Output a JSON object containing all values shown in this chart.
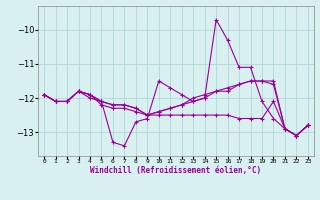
{
  "xlabel": "Windchill (Refroidissement éolien,°C)",
  "x_hours": [
    0,
    1,
    2,
    3,
    4,
    5,
    6,
    7,
    8,
    9,
    10,
    11,
    12,
    13,
    14,
    15,
    16,
    17,
    18,
    19,
    20,
    21,
    22,
    23
  ],
  "line1": [
    -11.9,
    -12.1,
    -12.1,
    -11.8,
    -12.0,
    -12.1,
    -13.3,
    -13.4,
    -12.7,
    -12.6,
    -11.5,
    -11.7,
    -11.9,
    -12.1,
    -12.0,
    -9.7,
    -10.3,
    -11.1,
    -11.1,
    -12.1,
    -12.6,
    -12.9,
    -13.1,
    -12.8
  ],
  "line2": [
    -11.9,
    -12.1,
    -12.1,
    -11.8,
    -11.9,
    -12.1,
    -12.2,
    -12.2,
    -12.3,
    -12.5,
    -12.4,
    -12.3,
    -12.2,
    -12.0,
    -11.9,
    -11.8,
    -11.8,
    -11.6,
    -11.5,
    -11.5,
    -11.6,
    -12.9,
    -13.1,
    -12.8
  ],
  "line3": [
    -11.9,
    -12.1,
    -12.1,
    -11.8,
    -11.9,
    -12.1,
    -12.2,
    -12.2,
    -12.3,
    -12.5,
    -12.4,
    -12.3,
    -12.2,
    -12.1,
    -12.0,
    -11.8,
    -11.7,
    -11.6,
    -11.5,
    -11.5,
    -11.5,
    -12.9,
    -13.1,
    -12.8
  ],
  "line4": [
    -11.9,
    -12.1,
    -12.1,
    -11.8,
    -11.9,
    -12.2,
    -12.3,
    -12.3,
    -12.4,
    -12.5,
    -12.5,
    -12.5,
    -12.5,
    -12.5,
    -12.5,
    -12.5,
    -12.5,
    -12.6,
    -12.6,
    -12.6,
    -12.1,
    -12.9,
    -13.1,
    -12.8
  ],
  "line_color": "#990099",
  "bg_color": "#d8f0f0",
  "grid_color": "#b0d8d8",
  "ylim": [
    -13.7,
    -9.3
  ],
  "yticks": [
    -13,
    -12,
    -11,
    -10
  ],
  "marker": "+",
  "markersize": 3,
  "linewidth": 0.8
}
